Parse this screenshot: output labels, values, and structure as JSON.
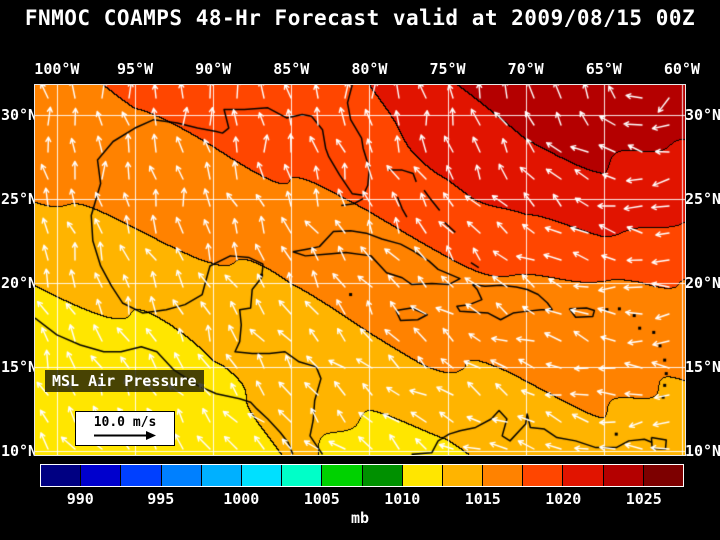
{
  "title": "FNMOC COAMPS 48-Hr Forecast valid at 2009/08/15 00Z",
  "map": {
    "overlay_label": "MSL Air Pressure",
    "wind_scale": {
      "label": "10.0 m/s"
    },
    "axes": {
      "lon_labels": [
        "100°W",
        "95°W",
        "90°W",
        "85°W",
        "80°W",
        "75°W",
        "70°W",
        "65°W",
        "60°W"
      ],
      "lat_labels": [
        "30°N",
        "25°N",
        "20°N",
        "15°N",
        "10°N"
      ]
    }
  },
  "colorbar": {
    "unit_label": "mb",
    "tick_labels": [
      "990",
      "995",
      "1000",
      "1005",
      "1010",
      "1015",
      "1020",
      "1025"
    ]
  },
  "chart_data": {
    "type": "heatmap",
    "title": "FNMOC COAMPS 48-Hr Forecast valid at 2009/08/15 00Z",
    "field_name": "MSL Air Pressure",
    "unit": "mb",
    "region": "Gulf of Mexico and Caribbean Sea",
    "lon_range": [
      -101.4,
      -59.8
    ],
    "lat_range": [
      9.76,
      31.76
    ],
    "lon_ticks": [
      -100,
      -95,
      -90,
      -85,
      -80,
      -75,
      -70,
      -65,
      -60
    ],
    "lat_ticks": [
      30,
      25,
      20,
      15,
      10
    ],
    "color_scale_start_mb": 987.5,
    "color_step_mb": 2.5,
    "colorbar_ticks_mb": [
      990,
      995,
      1000,
      1005,
      1010,
      1015,
      1020,
      1025
    ],
    "colors": [
      "#000082",
      "#0000cd",
      "#0040ff",
      "#0080ff",
      "#00b0ff",
      "#00e0ff",
      "#00ffc8",
      "#00d200",
      "#009000",
      "#ffe600",
      "#ffb400",
      "#ff8200",
      "#ff4600",
      "#e11400",
      "#b40000",
      "#7d0000"
    ],
    "grid": {
      "lons": [
        -100,
        -95,
        -90,
        -85,
        -80,
        -75,
        -70,
        -65,
        -60
      ],
      "lats": [
        30,
        25,
        20,
        15,
        10
      ],
      "pressure_mb": [
        [
          1016.4,
          1017.6,
          1018.0,
          1018.6,
          1019.4,
          1021.6,
          1023.2,
          1023.8,
          1023.2
        ],
        [
          1015.2,
          1016.0,
          1016.6,
          1017.0,
          1018.0,
          1019.2,
          1021.0,
          1021.6,
          1021.2
        ],
        [
          1012.8,
          1013.4,
          1014.2,
          1015.3,
          1016.1,
          1016.7,
          1017.2,
          1017.6,
          1017.3
        ],
        [
          1010.8,
          1011.2,
          1012.6,
          1013.2,
          1014.2,
          1015.0,
          1015.4,
          1015.7,
          1015.4
        ],
        [
          1010.3,
          1010.7,
          1011.3,
          1012.8,
          1011.5,
          1011.9,
          1013.6,
          1014.1,
          1014.0
        ]
      ]
    },
    "wind": {
      "reference_speed_label": "10.0 m/s",
      "arrow_color": "#ffffff",
      "pattern": "easterly trade winds across the Caribbean, anticyclonic flow around a western Atlantic high"
    },
    "legend_position": "bottom",
    "grid_lines": true
  }
}
